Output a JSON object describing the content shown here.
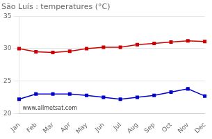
{
  "chart_data": {
    "type": "line",
    "title": "São Luís : temperatures (°C)",
    "categories": [
      "Jan",
      "Feb",
      "Mar",
      "Apr",
      "May",
      "Jun",
      "Jul",
      "Aug",
      "Sep",
      "Oct",
      "Nov",
      "Dec"
    ],
    "series": [
      {
        "color": "#cc0000",
        "marker": "square",
        "values": [
          30.0,
          29.5,
          29.4,
          29.6,
          30.0,
          30.2,
          30.2,
          30.6,
          30.8,
          31.0,
          31.2,
          31.1
        ]
      },
      {
        "color": "#0000cc",
        "marker": "square",
        "values": [
          22.2,
          23.0,
          23.0,
          23.0,
          22.8,
          22.5,
          22.2,
          22.5,
          22.8,
          23.3,
          23.8,
          22.7
        ]
      }
    ],
    "ylim": [
      20,
      35
    ],
    "yticks": [
      20,
      25,
      30,
      35
    ],
    "grid": "y",
    "annotations": [
      "www.allmetsat.com"
    ]
  }
}
